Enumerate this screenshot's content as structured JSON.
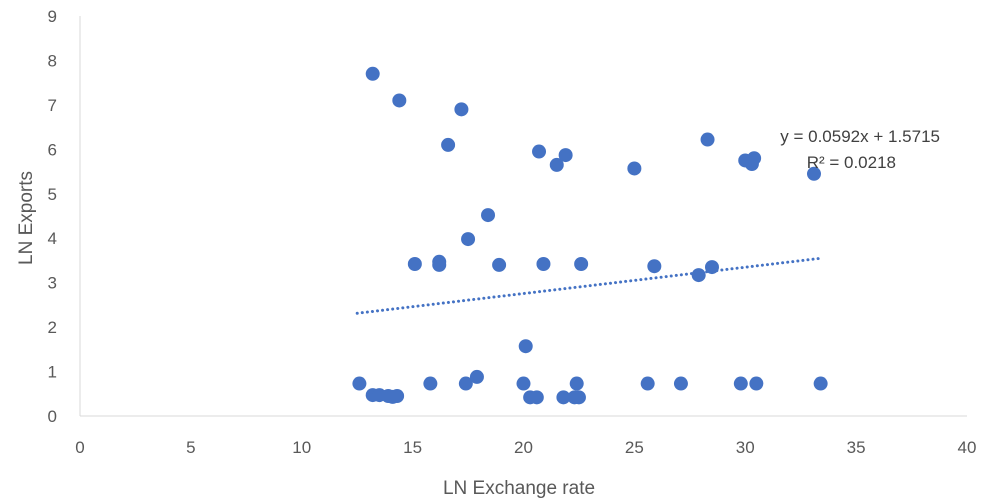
{
  "chart_data": {
    "type": "scatter",
    "xlabel": "LN Exchange rate",
    "ylabel": "LN Exports",
    "xlim": [
      0,
      40
    ],
    "ylim": [
      0,
      9
    ],
    "x_ticks": [
      "0",
      "5",
      "10",
      "15",
      "20",
      "25",
      "30",
      "35",
      "40"
    ],
    "y_ticks": [
      "0",
      "1",
      "2",
      "3",
      "4",
      "5",
      "6",
      "7",
      "8",
      "9"
    ],
    "grid": false,
    "marker_color": "#4472C4",
    "trendline": {
      "type": "linear",
      "slope": 0.0592,
      "intercept": 1.5715,
      "x_range": [
        12.5,
        33.3
      ],
      "style": "dotted",
      "equation_label": "y = 0.0592x + 1.5715",
      "r2_label": "R² = 0.0218"
    },
    "points": [
      {
        "x": 13.2,
        "y": 7.7
      },
      {
        "x": 14.4,
        "y": 7.1
      },
      {
        "x": 17.2,
        "y": 6.9
      },
      {
        "x": 16.6,
        "y": 6.1
      },
      {
        "x": 20.7,
        "y": 5.95
      },
      {
        "x": 21.9,
        "y": 5.87
      },
      {
        "x": 21.5,
        "y": 5.65
      },
      {
        "x": 25.0,
        "y": 5.57
      },
      {
        "x": 28.3,
        "y": 6.22
      },
      {
        "x": 30.0,
        "y": 5.75
      },
      {
        "x": 30.3,
        "y": 5.67
      },
      {
        "x": 30.4,
        "y": 5.8
      },
      {
        "x": 33.1,
        "y": 5.45
      },
      {
        "x": 18.4,
        "y": 4.52
      },
      {
        "x": 17.5,
        "y": 3.98
      },
      {
        "x": 15.1,
        "y": 3.42
      },
      {
        "x": 16.2,
        "y": 3.47
      },
      {
        "x": 16.2,
        "y": 3.4
      },
      {
        "x": 18.9,
        "y": 3.4
      },
      {
        "x": 20.9,
        "y": 3.42
      },
      {
        "x": 22.6,
        "y": 3.42
      },
      {
        "x": 25.9,
        "y": 3.37
      },
      {
        "x": 28.5,
        "y": 3.35
      },
      {
        "x": 27.9,
        "y": 3.17
      },
      {
        "x": 20.1,
        "y": 1.57
      },
      {
        "x": 12.6,
        "y": 0.73
      },
      {
        "x": 13.2,
        "y": 0.47
      },
      {
        "x": 13.5,
        "y": 0.47
      },
      {
        "x": 13.9,
        "y": 0.45
      },
      {
        "x": 14.1,
        "y": 0.43
      },
      {
        "x": 14.3,
        "y": 0.45
      },
      {
        "x": 15.8,
        "y": 0.73
      },
      {
        "x": 17.4,
        "y": 0.73
      },
      {
        "x": 17.9,
        "y": 0.88
      },
      {
        "x": 20.0,
        "y": 0.73
      },
      {
        "x": 20.3,
        "y": 0.42
      },
      {
        "x": 20.6,
        "y": 0.42
      },
      {
        "x": 21.8,
        "y": 0.42
      },
      {
        "x": 22.3,
        "y": 0.42
      },
      {
        "x": 22.5,
        "y": 0.42
      },
      {
        "x": 22.4,
        "y": 0.73
      },
      {
        "x": 25.6,
        "y": 0.73
      },
      {
        "x": 27.1,
        "y": 0.73
      },
      {
        "x": 29.8,
        "y": 0.73
      },
      {
        "x": 30.5,
        "y": 0.73
      },
      {
        "x": 33.4,
        "y": 0.73
      }
    ]
  }
}
